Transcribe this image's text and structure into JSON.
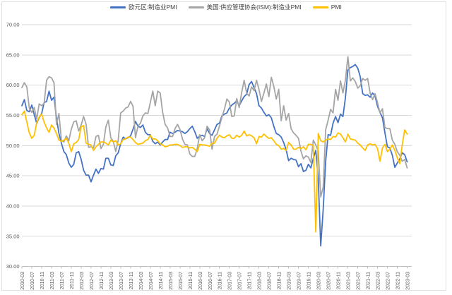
{
  "chart_data": {
    "type": "line",
    "title": "",
    "xlabel": "",
    "ylabel": "",
    "ylim": [
      30,
      70
    ],
    "grid": true,
    "legend_position": "top",
    "x_start": "2010-03",
    "x_end": "2023-03",
    "x_frequency": "monthly",
    "x_tick_every_n_months": 4,
    "y_tick_labels": [
      "70.00",
      "65.00",
      "60.00",
      "55.00",
      "50.00",
      "45.00",
      "40.00",
      "35.00",
      "30.00"
    ],
    "x_tick_labels": [
      "2010-03",
      "2010-07",
      "2010-11",
      "2011-03",
      "2011-07",
      "2011-11",
      "2012-03",
      "2012-07",
      "2012-11",
      "2013-03",
      "2013-07",
      "2013-11",
      "2014-03",
      "2014-07",
      "2014-11",
      "2015-03",
      "2015-07",
      "2015-11",
      "2016-03",
      "2016-07",
      "2016-11",
      "2017-03",
      "2017-07",
      "2017-11",
      "2018-03",
      "2018-07",
      "2018-11",
      "2019-03",
      "2019-07",
      "2019-11",
      "2020-03",
      "2020-07",
      "2020-11",
      "2021-03",
      "2021-07",
      "2021-11",
      "2022-03",
      "2022-07",
      "2022-11",
      "2023-03"
    ],
    "colors": {
      "gridline": "#d9d9d9",
      "axis_line": "#bfbfbf",
      "tick_label": "#595959"
    },
    "series": [
      {
        "name": "欧元区:制造业PMI",
        "color": "#4472c4",
        "values": [
          56.6,
          57.6,
          55.8,
          55.6,
          56.7,
          55.1,
          53.7,
          54.6,
          55.3,
          57.1,
          57.3,
          59.0,
          57.5,
          58.0,
          54.6,
          52.0,
          50.4,
          49.0,
          48.5,
          47.1,
          46.4,
          46.9,
          48.8,
          49.0,
          47.7,
          45.9,
          45.1,
          45.1,
          44.0,
          45.1,
          46.1,
          45.4,
          46.2,
          46.1,
          47.9,
          47.9,
          46.8,
          46.7,
          48.3,
          48.8,
          50.3,
          51.4,
          51.1,
          51.3,
          51.6,
          52.7,
          54.0,
          53.2,
          53.0,
          53.4,
          52.2,
          51.8,
          51.8,
          50.7,
          50.3,
          50.6,
          50.1,
          50.6,
          51.0,
          51.0,
          52.2,
          52.0,
          52.2,
          52.5,
          52.4,
          52.3,
          52.0,
          52.3,
          52.8,
          53.2,
          52.3,
          51.2,
          51.6,
          51.7,
          51.5,
          52.8,
          52.0,
          51.7,
          52.6,
          53.5,
          53.7,
          54.9,
          55.2,
          55.4,
          56.2,
          56.7,
          57.0,
          57.4,
          56.6,
          57.4,
          58.1,
          58.5,
          60.1,
          60.6,
          59.6,
          58.6,
          56.6,
          56.2,
          55.5,
          54.9,
          55.1,
          54.6,
          53.2,
          52.0,
          51.8,
          51.4,
          50.5,
          49.3,
          47.5,
          47.9,
          47.7,
          47.6,
          46.5,
          47.0,
          45.7,
          45.9,
          46.9,
          46.3,
          47.9,
          49.2,
          44.5,
          33.4,
          39.4,
          47.4,
          51.8,
          51.7,
          53.7,
          54.8,
          53.8,
          55.2,
          54.8,
          57.9,
          62.5,
          62.9,
          63.1,
          63.4,
          62.8,
          61.4,
          58.6,
          58.3,
          58.4,
          58.0,
          58.7,
          58.2,
          56.5,
          55.5,
          54.6,
          52.1,
          49.8,
          49.6,
          48.4,
          46.4,
          47.1,
          47.8,
          48.8,
          48.5,
          47.3
        ]
      },
      {
        "name": "美国:供应管理协会(ISM):制造业PMI",
        "color": "#a5a5a5",
        "values": [
          59.6,
          60.4,
          59.7,
          56.2,
          55.5,
          56.3,
          54.4,
          56.9,
          56.6,
          57.0,
          60.8,
          61.4,
          61.2,
          60.4,
          53.5,
          55.3,
          50.9,
          50.6,
          51.6,
          50.8,
          52.7,
          53.9,
          54.1,
          52.4,
          53.4,
          54.8,
          53.5,
          49.7,
          49.8,
          49.6,
          51.5,
          51.7,
          49.5,
          50.2,
          53.1,
          54.2,
          51.3,
          50.7,
          49.0,
          50.9,
          55.4,
          55.7,
          56.2,
          56.4,
          57.3,
          56.5,
          51.3,
          53.2,
          53.7,
          54.9,
          55.4,
          55.3,
          57.1,
          59.0,
          56.6,
          59.0,
          58.7,
          55.5,
          53.5,
          52.9,
          51.5,
          51.5,
          52.8,
          53.5,
          52.7,
          51.1,
          50.2,
          50.1,
          48.6,
          48.2,
          48.2,
          49.5,
          51.8,
          50.8,
          51.3,
          53.2,
          52.6,
          49.4,
          51.5,
          51.9,
          53.2,
          54.7,
          56.0,
          57.7,
          57.2,
          54.8,
          54.9,
          57.8,
          56.3,
          58.8,
          60.8,
          58.7,
          58.2,
          59.7,
          59.1,
          60.8,
          59.3,
          57.3,
          58.7,
          60.2,
          58.1,
          61.3,
          59.8,
          57.7,
          59.3,
          54.1,
          56.6,
          54.2,
          55.3,
          52.8,
          52.1,
          51.7,
          51.2,
          49.1,
          47.8,
          48.3,
          48.1,
          47.2,
          50.9,
          50.1,
          49.1,
          41.5,
          43.1,
          52.6,
          54.2,
          56.0,
          55.4,
          59.3,
          57.5,
          60.7,
          58.7,
          60.8,
          64.7,
          60.7,
          61.2,
          60.6,
          59.5,
          59.9,
          61.1,
          60.8,
          61.1,
          58.7,
          57.6,
          58.6,
          57.1,
          55.4,
          56.1,
          53.0,
          52.8,
          52.8,
          50.9,
          50.2,
          49.0,
          48.4,
          47.4,
          47.7,
          46.3
        ]
      },
      {
        "name": "PMI",
        "color": "#ffc000",
        "values": [
          55.1,
          55.7,
          53.9,
          52.1,
          51.2,
          51.7,
          53.8,
          54.7,
          55.2,
          53.9,
          52.9,
          52.2,
          53.4,
          52.9,
          52.0,
          50.9,
          50.7,
          50.9,
          51.2,
          50.4,
          49.0,
          50.3,
          50.5,
          51.0,
          53.1,
          53.3,
          50.4,
          50.2,
          50.1,
          49.2,
          49.8,
          50.2,
          50.6,
          50.6,
          50.4,
          50.1,
          50.9,
          50.6,
          50.8,
          50.1,
          50.3,
          51.0,
          51.1,
          51.4,
          51.4,
          51.0,
          50.5,
          50.2,
          50.3,
          50.4,
          50.8,
          51.0,
          51.7,
          51.1,
          51.1,
          50.8,
          50.3,
          50.1,
          49.8,
          49.9,
          50.1,
          50.1,
          50.2,
          50.2,
          50.0,
          49.7,
          49.8,
          49.8,
          49.6,
          49.7,
          49.4,
          49.0,
          50.2,
          50.1,
          50.1,
          50.0,
          49.9,
          50.4,
          50.4,
          51.2,
          51.7,
          51.4,
          51.3,
          51.6,
          51.8,
          51.2,
          51.2,
          51.7,
          51.4,
          51.7,
          52.4,
          51.6,
          51.8,
          51.6,
          51.3,
          50.3,
          51.5,
          51.4,
          51.9,
          51.5,
          51.2,
          51.3,
          50.8,
          50.2,
          50.0,
          49.4,
          49.5,
          49.2,
          50.5,
          50.1,
          49.4,
          49.4,
          49.7,
          49.5,
          49.8,
          49.3,
          50.2,
          50.2,
          50.0,
          35.7,
          52.0,
          50.8,
          50.6,
          50.9,
          51.1,
          51.0,
          51.5,
          51.4,
          52.1,
          51.9,
          51.3,
          50.6,
          51.9,
          51.1,
          51.0,
          50.9,
          50.4,
          50.1,
          49.6,
          49.2,
          50.1,
          50.3,
          50.1,
          50.2,
          49.5,
          47.4,
          49.6,
          50.2,
          49.0,
          49.4,
          50.1,
          49.2,
          48.0,
          47.0,
          50.1,
          52.6,
          51.9
        ]
      }
    ]
  }
}
